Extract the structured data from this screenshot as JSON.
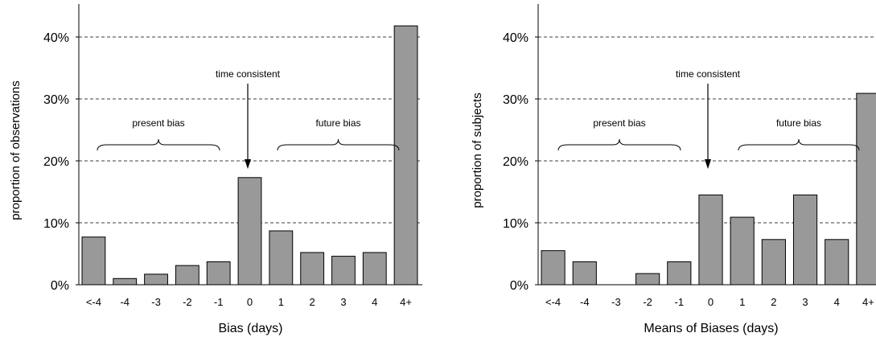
{
  "chart_data": [
    {
      "type": "bar",
      "categories": [
        "<-4",
        "-4",
        "-3",
        "-2",
        "-1",
        "0",
        "1",
        "2",
        "3",
        "4",
        "4+"
      ],
      "values": [
        7.7,
        1.0,
        1.7,
        3.1,
        3.7,
        17.3,
        8.7,
        5.2,
        4.6,
        5.2,
        41.8
      ],
      "xlabel": "Bias (days)",
      "ylabel": "proportion of observations",
      "ylim": [
        0,
        45
      ],
      "yticks": [
        0,
        10,
        20,
        30,
        40
      ],
      "ytick_labels": [
        "0%",
        "10%",
        "20%",
        "30%",
        "40%"
      ],
      "grid": "horizontal dashed at 10%, 20%, 30%, 40%",
      "bar_color": "#999999",
      "annotations": {
        "time_consistent": "time consistent",
        "present_bias": "present bias",
        "future_bias": "future bias"
      }
    },
    {
      "type": "bar",
      "categories": [
        "<-4",
        "-4",
        "-3",
        "-2",
        "-1",
        "0",
        "1",
        "2",
        "3",
        "4",
        "4+"
      ],
      "values": [
        5.5,
        3.7,
        0,
        1.8,
        3.7,
        14.5,
        10.9,
        7.3,
        14.5,
        7.3,
        30.9
      ],
      "xlabel": "Means of Biases (days)",
      "ylabel": "proportion of subjects",
      "ylim": [
        0,
        45
      ],
      "yticks": [
        0,
        10,
        20,
        30,
        40
      ],
      "ytick_labels": [
        "0%",
        "10%",
        "20%",
        "30%",
        "40%"
      ],
      "grid": "horizontal dashed at 10%, 20%, 30%, 40%",
      "bar_color": "#999999",
      "annotations": {
        "time_consistent": "time consistent",
        "present_bias": "present bias",
        "future_bias": "future bias"
      }
    }
  ]
}
